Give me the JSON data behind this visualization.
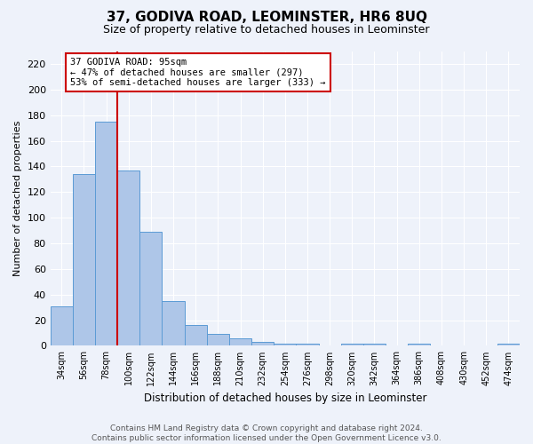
{
  "title": "37, GODIVA ROAD, LEOMINSTER, HR6 8UQ",
  "subtitle": "Size of property relative to detached houses in Leominster",
  "xlabel": "Distribution of detached houses by size in Leominster",
  "ylabel": "Number of detached properties",
  "bar_labels": [
    "34sqm",
    "56sqm",
    "78sqm",
    "100sqm",
    "122sqm",
    "144sqm",
    "166sqm",
    "188sqm",
    "210sqm",
    "232sqm",
    "254sqm",
    "276sqm",
    "298sqm",
    "320sqm",
    "342sqm",
    "364sqm",
    "386sqm",
    "408sqm",
    "430sqm",
    "452sqm",
    "474sqm"
  ],
  "bar_values": [
    31,
    134,
    175,
    137,
    89,
    35,
    16,
    9,
    6,
    3,
    2,
    2,
    0,
    2,
    2,
    0,
    2,
    0,
    0,
    0,
    2
  ],
  "bar_color": "#aec6e8",
  "bar_edge_color": "#5b9bd5",
  "vline_color": "#cc0000",
  "annotation_text": "37 GODIVA ROAD: 95sqm\n← 47% of detached houses are smaller (297)\n53% of semi-detached houses are larger (333) →",
  "annotation_box_color": "#ffffff",
  "annotation_box_edge": "#cc0000",
  "ylim": [
    0,
    230
  ],
  "yticks": [
    0,
    20,
    40,
    60,
    80,
    100,
    120,
    140,
    160,
    180,
    200,
    220
  ],
  "footer": "Contains HM Land Registry data © Crown copyright and database right 2024.\nContains public sector information licensed under the Open Government Licence v3.0.",
  "bg_color": "#eef2fa",
  "grid_color": "#ffffff",
  "title_fontsize": 11,
  "subtitle_fontsize": 9
}
